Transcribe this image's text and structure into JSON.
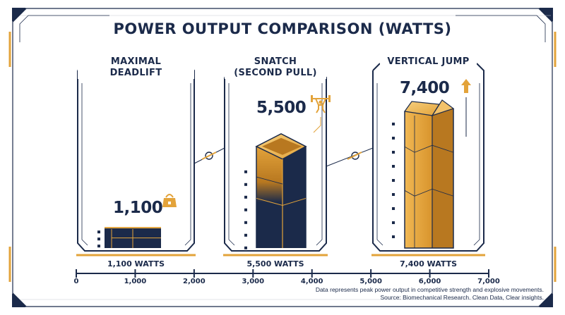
{
  "title": "POWER OUTPUT COMPARISON (WATTS)",
  "chart_data": {
    "type": "bar",
    "title": "POWER OUTPUT COMPARISON (WATTS)",
    "categories": [
      {
        "lines": [
          "MAXIMAL",
          "DEADLIFT"
        ],
        "value_label": "1,100",
        "watts_label": "1,100 WATTS",
        "icon": "kettlebell-icon"
      },
      {
        "lines": [
          "SNATCH",
          "(SECOND PULL)"
        ],
        "value_label": "5,500",
        "watts_label": "5,500 WATTS",
        "icon": "weightlifter-icon"
      },
      {
        "lines": [
          "VERTICAL JUMP"
        ],
        "value_label": "7,400",
        "watts_label": "7,400 WATTS",
        "icon": "up-arrow-icon"
      }
    ],
    "values": [
      1100,
      5500,
      7400
    ],
    "ylim": [
      0,
      7400
    ],
    "xaxis": {
      "ticks": [
        0,
        1000,
        2000,
        3000,
        4000,
        5000,
        6000,
        7000
      ],
      "tick_labels": [
        "0",
        "1,000",
        "2,000",
        "3,000",
        "4,000",
        "5,000",
        "6,000",
        "7,000"
      ]
    },
    "colors": {
      "navy": "#1b2a4a",
      "gold": "#e3a33a",
      "gold_dark": "#b87820",
      "gold_light": "#f3c26a"
    }
  },
  "footnote": [
    "Data represents peak power output in competitive strength and explosive movements.",
    "Source: Biomechanical Research. Clean Data, Clear insights."
  ]
}
